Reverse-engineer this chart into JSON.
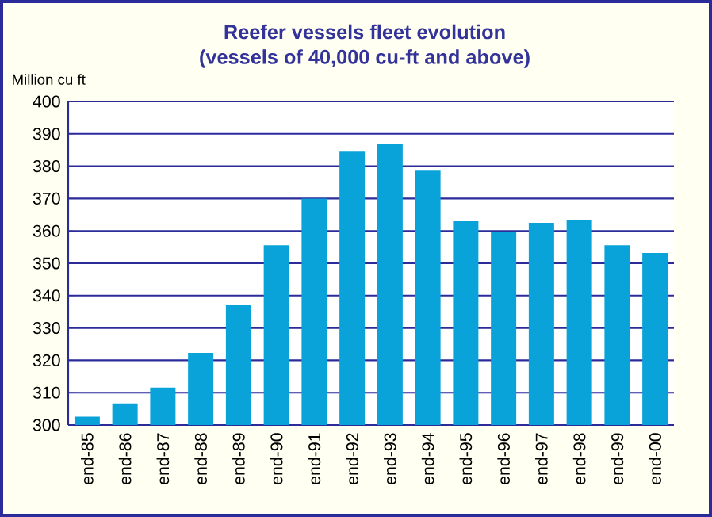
{
  "chart_data": {
    "type": "bar",
    "title": "Reefer vessels fleet evolution",
    "subtitle": "(vessels of 40,000 cu-ft and above)",
    "ylabel": "Million cu ft",
    "categories": [
      "end-85",
      "end-86",
      "end-87",
      "end-88",
      "end-89",
      "end-90",
      "end-91",
      "end-92",
      "end-93",
      "end-94",
      "end-95",
      "end-96",
      "end-97",
      "end-98",
      "end-99",
      "end-00"
    ],
    "values": [
      302.6,
      306.7,
      311.6,
      322.3,
      337,
      355.6,
      370,
      384.5,
      387,
      378.6,
      363,
      359.7,
      362.5,
      363.5,
      355.6,
      353.2
    ],
    "color": "#0aa3d9",
    "ylim": [
      300,
      400
    ],
    "yticks": [
      300,
      310,
      320,
      330,
      340,
      350,
      360,
      370,
      380,
      390,
      400
    ],
    "grid": "y"
  }
}
